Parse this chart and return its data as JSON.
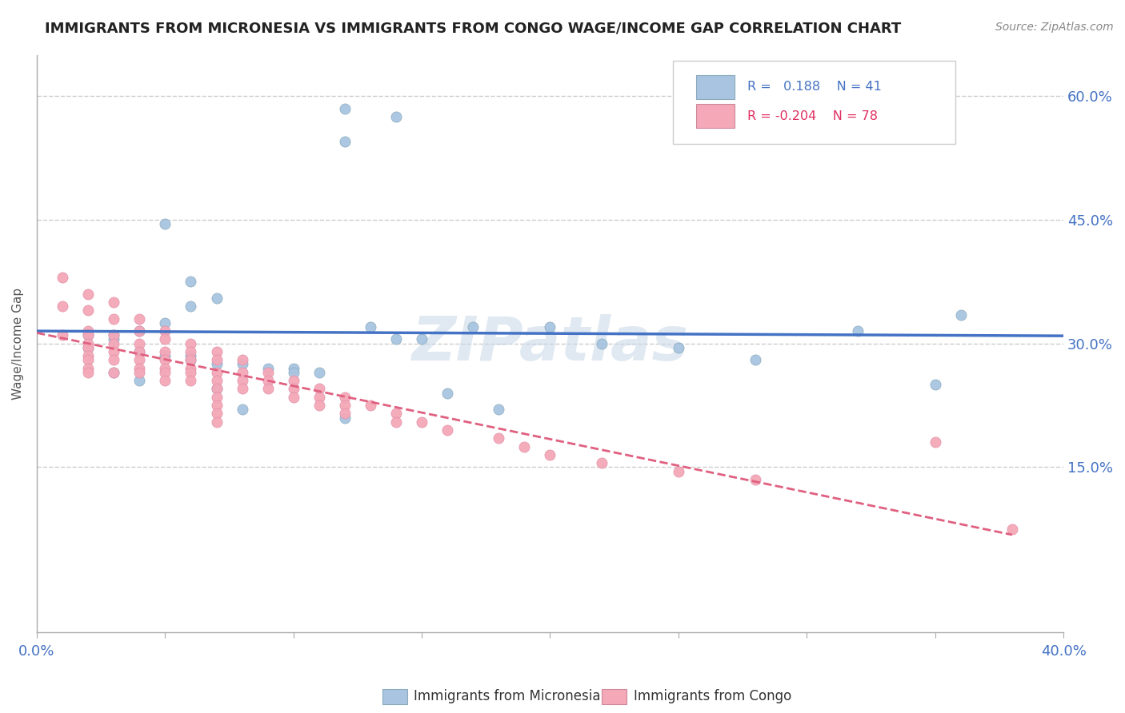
{
  "title": "IMMIGRANTS FROM MICRONESIA VS IMMIGRANTS FROM CONGO WAGE/INCOME GAP CORRELATION CHART",
  "source": "Source: ZipAtlas.com",
  "ylabel": "Wage/Income Gap",
  "ytick_vals": [
    0.0,
    0.15,
    0.3,
    0.45,
    0.6
  ],
  "ytick_labels": [
    "",
    "15.0%",
    "30.0%",
    "45.0%",
    "60.0%"
  ],
  "xlim": [
    0.0,
    0.4
  ],
  "ylim": [
    -0.05,
    0.65
  ],
  "color_micro": "#a8c4e0",
  "color_congo": "#f4a8b8",
  "trendline_micro_color": "#4472c4",
  "trendline_congo_color": "#e06080",
  "watermark": "ZIPatlas",
  "watermark_color": "#c8d8e8",
  "micro_x": [
    0.12,
    0.14,
    0.12,
    0.05,
    0.06,
    0.07,
    0.06,
    0.05,
    0.04,
    0.03,
    0.03,
    0.04,
    0.05,
    0.06,
    0.06,
    0.07,
    0.08,
    0.09,
    0.1,
    0.11,
    0.13,
    0.15,
    0.17,
    0.2,
    0.22,
    0.25,
    0.28,
    0.32,
    0.35,
    0.02,
    0.02,
    0.03,
    0.04,
    0.07,
    0.08,
    0.1,
    0.12,
    0.14,
    0.16,
    0.18,
    0.36
  ],
  "micro_y": [
    0.585,
    0.575,
    0.545,
    0.445,
    0.375,
    0.355,
    0.345,
    0.325,
    0.315,
    0.31,
    0.305,
    0.29,
    0.285,
    0.285,
    0.28,
    0.275,
    0.275,
    0.27,
    0.27,
    0.265,
    0.32,
    0.305,
    0.32,
    0.32,
    0.3,
    0.295,
    0.28,
    0.315,
    0.25,
    0.31,
    0.295,
    0.265,
    0.255,
    0.245,
    0.22,
    0.265,
    0.21,
    0.305,
    0.24,
    0.22,
    0.335
  ],
  "congo_x": [
    0.01,
    0.01,
    0.01,
    0.02,
    0.02,
    0.02,
    0.02,
    0.02,
    0.02,
    0.02,
    0.02,
    0.02,
    0.02,
    0.03,
    0.03,
    0.03,
    0.03,
    0.03,
    0.03,
    0.03,
    0.04,
    0.04,
    0.04,
    0.04,
    0.04,
    0.04,
    0.04,
    0.05,
    0.05,
    0.05,
    0.05,
    0.05,
    0.05,
    0.05,
    0.06,
    0.06,
    0.06,
    0.06,
    0.06,
    0.06,
    0.07,
    0.07,
    0.07,
    0.07,
    0.07,
    0.07,
    0.07,
    0.07,
    0.07,
    0.08,
    0.08,
    0.08,
    0.08,
    0.09,
    0.09,
    0.09,
    0.1,
    0.1,
    0.1,
    0.11,
    0.11,
    0.11,
    0.12,
    0.12,
    0.12,
    0.13,
    0.14,
    0.14,
    0.15,
    0.16,
    0.18,
    0.19,
    0.2,
    0.22,
    0.25,
    0.28,
    0.35,
    0.38
  ],
  "congo_y": [
    0.38,
    0.345,
    0.31,
    0.36,
    0.34,
    0.315,
    0.31,
    0.3,
    0.295,
    0.285,
    0.28,
    0.27,
    0.265,
    0.35,
    0.33,
    0.31,
    0.3,
    0.29,
    0.28,
    0.265,
    0.33,
    0.315,
    0.3,
    0.29,
    0.28,
    0.27,
    0.265,
    0.315,
    0.305,
    0.29,
    0.28,
    0.27,
    0.265,
    0.255,
    0.3,
    0.29,
    0.28,
    0.27,
    0.265,
    0.255,
    0.29,
    0.28,
    0.265,
    0.255,
    0.245,
    0.235,
    0.225,
    0.215,
    0.205,
    0.28,
    0.265,
    0.255,
    0.245,
    0.265,
    0.255,
    0.245,
    0.255,
    0.245,
    0.235,
    0.245,
    0.235,
    0.225,
    0.235,
    0.225,
    0.215,
    0.225,
    0.215,
    0.205,
    0.205,
    0.195,
    0.185,
    0.175,
    0.165,
    0.155,
    0.145,
    0.135,
    0.18,
    0.075
  ]
}
